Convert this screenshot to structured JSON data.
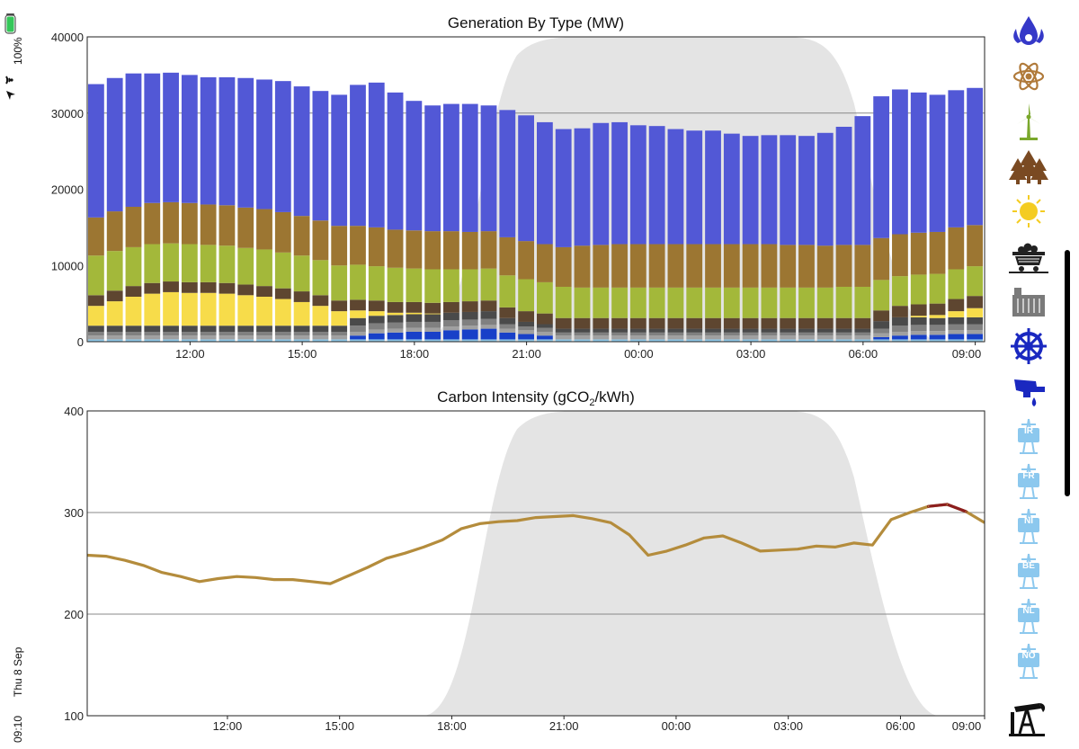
{
  "status_bar": {
    "time": "09:10",
    "date": "Thu 8 Sep",
    "battery": "100%"
  },
  "colors": {
    "solar_band": "#e4e4e4",
    "series": {
      "gas": "#5258d6",
      "biomass": "#9c7632",
      "wind": "#a3b83a",
      "pumped": "#5e4630",
      "solar": "#f7dc4a",
      "other1": "#4a4a4a",
      "other2": "#808080",
      "hydro": "#a0a0a0",
      "imports": "#1840c8",
      "interconnect": "#8fc8e8"
    },
    "intensity_line": "#b48c3c",
    "intensity_high": "#8c1e1e"
  },
  "chart_data": [
    {
      "type": "bar",
      "stacked": true,
      "title": "Generation By Type (MW)",
      "ylim": [
        0,
        40000
      ],
      "yticks": [
        "0",
        "10000",
        "20000",
        "30000",
        "40000"
      ],
      "ytick_values": [
        0,
        10000,
        20000,
        30000,
        40000
      ],
      "xticks": [
        "12:00",
        "15:00",
        "18:00",
        "21:00",
        "00:00",
        "03:00",
        "06:00",
        "09:00"
      ],
      "xtick_positions": [
        5,
        11,
        17,
        23,
        29,
        35,
        41,
        47
      ],
      "num_bars": 48,
      "series": [
        {
          "name": "interconnect",
          "color_key": "interconnect",
          "values": [
            300,
            300,
            300,
            300,
            300,
            300,
            300,
            300,
            300,
            300,
            300,
            300,
            300,
            300,
            300,
            300,
            300,
            300,
            300,
            300,
            300,
            300,
            300,
            300,
            300,
            300,
            300,
            300,
            300,
            300,
            300,
            300,
            300,
            300,
            300,
            300,
            300,
            300,
            300,
            300,
            300,
            300,
            300,
            300,
            300,
            300,
            300,
            300
          ]
        },
        {
          "name": "imports",
          "color_key": "imports",
          "values": [
            0,
            0,
            0,
            0,
            0,
            0,
            0,
            0,
            0,
            0,
            0,
            0,
            0,
            0,
            500,
            800,
            900,
            1000,
            1000,
            1200,
            1300,
            1400,
            900,
            700,
            500,
            0,
            0,
            0,
            0,
            0,
            0,
            0,
            0,
            0,
            0,
            0,
            0,
            0,
            0,
            0,
            0,
            0,
            300,
            500,
            600,
            600,
            700,
            700
          ]
        },
        {
          "name": "hydro",
          "color_key": "hydro",
          "values": [
            500,
            500,
            500,
            500,
            500,
            500,
            500,
            500,
            500,
            500,
            500,
            500,
            500,
            500,
            500,
            500,
            500,
            500,
            500,
            500,
            500,
            500,
            500,
            500,
            500,
            500,
            500,
            500,
            500,
            500,
            500,
            500,
            500,
            500,
            500,
            500,
            500,
            500,
            500,
            500,
            500,
            500,
            500,
            500,
            500,
            500,
            500,
            500
          ]
        },
        {
          "name": "other2",
          "color_key": "other2",
          "values": [
            500,
            500,
            500,
            500,
            500,
            500,
            500,
            500,
            500,
            500,
            500,
            500,
            500,
            500,
            800,
            800,
            800,
            800,
            800,
            800,
            800,
            800,
            600,
            500,
            500,
            400,
            400,
            400,
            400,
            400,
            400,
            400,
            400,
            400,
            400,
            400,
            400,
            400,
            400,
            400,
            400,
            400,
            600,
            800,
            800,
            800,
            800,
            800
          ]
        },
        {
          "name": "other1",
          "color_key": "other1",
          "values": [
            800,
            800,
            800,
            800,
            800,
            800,
            800,
            800,
            800,
            800,
            800,
            800,
            800,
            800,
            1000,
            1000,
            1000,
            1000,
            1000,
            1000,
            1000,
            1000,
            800,
            600,
            500,
            500,
            500,
            500,
            500,
            500,
            500,
            500,
            500,
            500,
            500,
            500,
            500,
            500,
            500,
            500,
            500,
            500,
            1000,
            1100,
            1000,
            900,
            900,
            900
          ]
        },
        {
          "name": "solar",
          "color_key": "solar",
          "values": [
            2600,
            3200,
            3800,
            4200,
            4400,
            4300,
            4300,
            4200,
            4000,
            3800,
            3500,
            3100,
            2600,
            1900,
            1000,
            600,
            300,
            200,
            100,
            0,
            0,
            0,
            0,
            0,
            0,
            0,
            0,
            0,
            0,
            0,
            0,
            0,
            0,
            0,
            0,
            0,
            0,
            0,
            0,
            0,
            0,
            0,
            0,
            0,
            200,
            400,
            800,
            1200
          ]
        },
        {
          "name": "pumped",
          "color_key": "pumped",
          "values": [
            1400,
            1400,
            1400,
            1400,
            1400,
            1400,
            1400,
            1400,
            1400,
            1400,
            1400,
            1400,
            1400,
            1400,
            1400,
            1400,
            1400,
            1400,
            1400,
            1400,
            1400,
            1400,
            1400,
            1400,
            1400,
            1400,
            1400,
            1400,
            1400,
            1400,
            1400,
            1400,
            1400,
            1400,
            1400,
            1400,
            1400,
            1400,
            1400,
            1400,
            1400,
            1400,
            1400,
            1500,
            1500,
            1500,
            1600,
            1600
          ]
        },
        {
          "name": "wind",
          "color_key": "wind",
          "values": [
            5200,
            5200,
            5100,
            5100,
            5000,
            5000,
            4900,
            4900,
            4800,
            4800,
            4700,
            4700,
            4600,
            4600,
            4600,
            4500,
            4500,
            4400,
            4400,
            4300,
            4200,
            4200,
            4200,
            4200,
            4100,
            4100,
            4000,
            4000,
            4000,
            4000,
            4000,
            4000,
            4000,
            4000,
            4000,
            4000,
            4000,
            4000,
            4000,
            4000,
            4100,
            4100,
            4000,
            3900,
            3900,
            3900,
            3900,
            3900
          ]
        },
        {
          "name": "biomass",
          "color_key": "biomass",
          "values": [
            5000,
            5200,
            5300,
            5400,
            5400,
            5400,
            5300,
            5300,
            5300,
            5300,
            5300,
            5200,
            5200,
            5200,
            5100,
            5100,
            5000,
            5000,
            5000,
            5000,
            4900,
            4900,
            5000,
            5000,
            5000,
            5200,
            5500,
            5600,
            5700,
            5700,
            5700,
            5700,
            5700,
            5700,
            5700,
            5700,
            5700,
            5600,
            5600,
            5500,
            5500,
            5500,
            5500,
            5500,
            5500,
            5500,
            5500,
            5400
          ]
        },
        {
          "name": "gas",
          "color_key": "gas",
          "values": [
            17500,
            17500,
            17500,
            17000,
            17000,
            16800,
            16700,
            16800,
            17000,
            17000,
            17200,
            17000,
            17000,
            17200,
            18500,
            19000,
            18000,
            17000,
            16500,
            16700,
            16800,
            16500,
            16700,
            16500,
            16000,
            15500,
            15400,
            16000,
            16000,
            15600,
            15500,
            15100,
            14900,
            14900,
            14500,
            14200,
            14300,
            14400,
            14300,
            14800,
            15500,
            16900,
            18600,
            19000,
            18400,
            18000,
            18000,
            18000
          ]
        }
      ]
    },
    {
      "type": "line",
      "title": "Carbon Intensity (gCO2/kWh)",
      "ylim": [
        100,
        400
      ],
      "yticks": [
        "100",
        "200",
        "300",
        "400"
      ],
      "ytick_values": [
        100,
        200,
        300,
        400
      ],
      "xticks": [
        "12:00",
        "15:00",
        "18:00",
        "21:00",
        "00:00",
        "03:00",
        "06:00",
        "09:00"
      ],
      "x_start_hours": 8,
      "x_end_hours": 32,
      "high_threshold": 302,
      "x": [
        8.0,
        8.5,
        9.0,
        9.5,
        10.0,
        10.5,
        11.0,
        11.5,
        12.0,
        12.5,
        13.0,
        13.5,
        14.0,
        14.5,
        15.0,
        15.5,
        16.0,
        16.5,
        17.0,
        17.5,
        18.0,
        18.5,
        19.0,
        19.5,
        20.0,
        20.5,
        21.0,
        21.5,
        22.0,
        22.5,
        23.0,
        23.5,
        24.0,
        24.5,
        25.0,
        25.5,
        26.0,
        26.5,
        27.0,
        27.5,
        28.0,
        28.5,
        29.0,
        29.5,
        30.0,
        30.5,
        31.0,
        31.5,
        32.0
      ],
      "y": [
        258,
        257,
        253,
        248,
        241,
        237,
        232,
        235,
        237,
        236,
        234,
        234,
        232,
        230,
        238,
        246,
        255,
        260,
        266,
        273,
        284,
        289,
        291,
        292,
        295,
        296,
        297,
        294,
        290,
        278,
        258,
        262,
        268,
        275,
        277,
        270,
        262,
        263,
        264,
        267,
        266,
        270,
        268,
        293,
        300,
        306,
        308,
        301,
        290
      ]
    }
  ],
  "legend": {
    "items": [
      {
        "name": "gas-icon",
        "label": ""
      },
      {
        "name": "nuclear-icon",
        "label": ""
      },
      {
        "name": "wind-turbine-icon",
        "label": ""
      },
      {
        "name": "biomass-trees-icon",
        "label": ""
      },
      {
        "name": "solar-sun-icon",
        "label": ""
      },
      {
        "name": "coal-cart-icon",
        "label": ""
      },
      {
        "name": "other-generation-icon",
        "label": ""
      },
      {
        "name": "hydro-turbine-icon",
        "label": ""
      },
      {
        "name": "pumped-storage-icon",
        "label": ""
      },
      {
        "name": "interconnector-ir-icon",
        "label": "IR"
      },
      {
        "name": "interconnector-fr-icon",
        "label": "FR"
      },
      {
        "name": "interconnector-ni-icon",
        "label": "NI"
      },
      {
        "name": "interconnector-be-icon",
        "label": "BE"
      },
      {
        "name": "interconnector-nl-icon",
        "label": "NL"
      },
      {
        "name": "interconnector-no-icon",
        "label": "NO"
      },
      {
        "name": "oil-pump-icon",
        "label": ""
      }
    ]
  }
}
